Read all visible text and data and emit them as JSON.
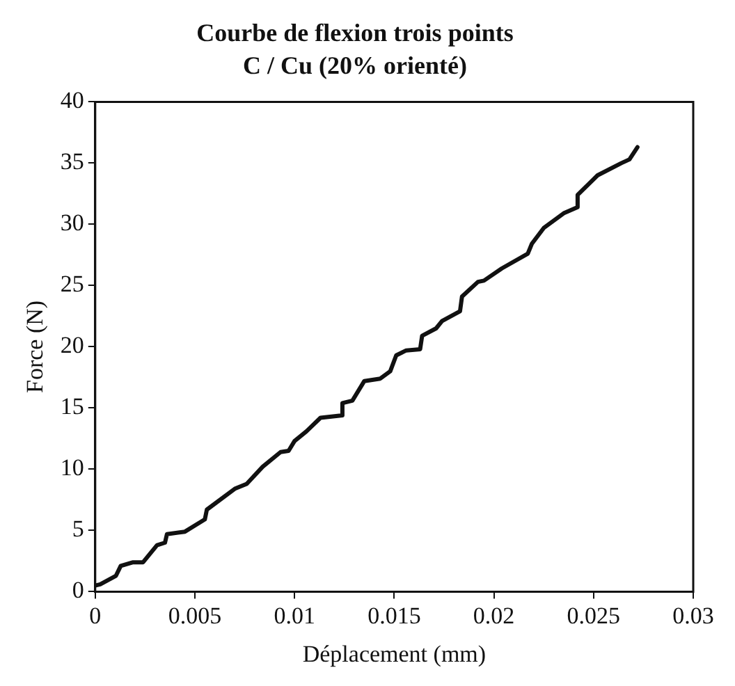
{
  "chart_data": {
    "type": "line",
    "title": "Courbe de flexion trois points",
    "subtitle": "C / Cu (20% orienté)",
    "xlabel": "Déplacement (mm)",
    "ylabel": "Force (N)",
    "xlim": [
      0,
      0.03
    ],
    "xticks": [
      0,
      0.005,
      0.01,
      0.015,
      0.02,
      0.025,
      0.03
    ],
    "ylim": [
      0,
      40
    ],
    "yticks": [
      0,
      5,
      10,
      15,
      20,
      25,
      30,
      35,
      40
    ],
    "grid": false,
    "legend": false,
    "marker": "none",
    "line_style": "solid",
    "series": [
      {
        "color": "#111111",
        "x": [
          0,
          0.00025,
          0.00104,
          0.00128,
          0.0019,
          0.0024,
          0.0031,
          0.0035,
          0.0036,
          0.0045,
          0.0055,
          0.0056,
          0.007,
          0.0076,
          0.0084,
          0.0093,
          0.0097,
          0.01,
          0.0106,
          0.0113,
          0.0124,
          0.0124,
          0.0129,
          0.0135,
          0.0143,
          0.0148,
          0.0151,
          0.0156,
          0.0163,
          0.0164,
          0.0171,
          0.0174,
          0.0183,
          0.0184,
          0.0192,
          0.0195,
          0.0204,
          0.0217,
          0.0219,
          0.0225,
          0.0235,
          0.0242,
          0.0242,
          0.0252,
          0.0264,
          0.0268,
          0.0272
        ],
        "values": [
          0.5,
          0.6,
          1.3,
          2.1,
          2.4,
          2.4,
          3.8,
          4.0,
          4.7,
          4.9,
          5.9,
          6.7,
          8.4,
          8.8,
          10.2,
          11.4,
          11.5,
          12.3,
          13.1,
          14.2,
          14.4,
          15.4,
          15.6,
          17.2,
          17.4,
          18.0,
          19.3,
          19.7,
          19.8,
          20.9,
          21.5,
          22.1,
          22.9,
          24.1,
          25.3,
          25.4,
          26.4,
          27.6,
          28.4,
          29.7,
          30.9,
          31.4,
          32.4,
          34.0,
          35.0,
          35.3,
          36.3
        ]
      }
    ]
  }
}
